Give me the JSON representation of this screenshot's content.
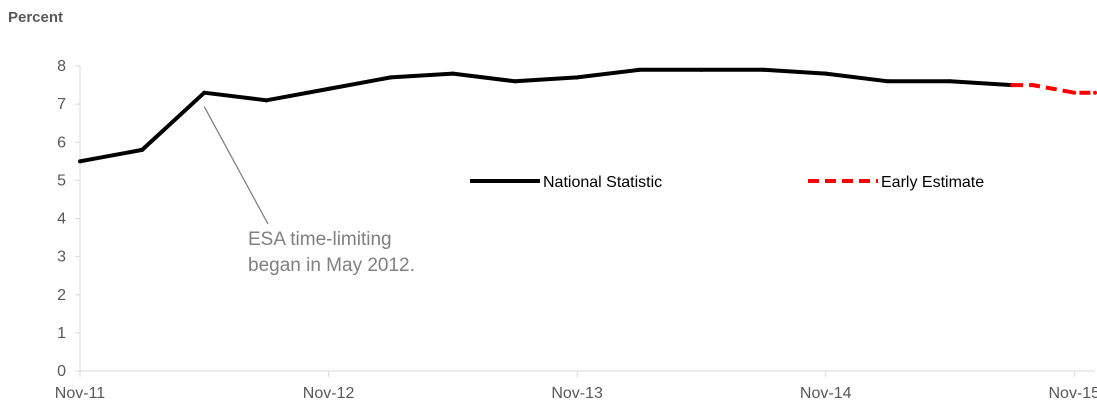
{
  "chart_data": {
    "type": "line",
    "ylabel": "Percent",
    "ylim": [
      0,
      8
    ],
    "yticks": [
      "0",
      "1",
      "2",
      "3",
      "4",
      "5",
      "6",
      "7",
      "8"
    ],
    "x_tick_labels": [
      "Nov-11",
      "Nov-12",
      "Nov-13",
      "Nov-14",
      "Nov-15"
    ],
    "grid": false,
    "legend_position": "middle-right",
    "series": [
      {
        "name": "National Statistic",
        "color": "#000000",
        "style": "solid",
        "x": [
          "Nov-11",
          "Feb-12",
          "May-12",
          "Aug-12",
          "Nov-12",
          "Feb-13",
          "May-13",
          "Aug-13",
          "Nov-13",
          "Feb-14",
          "May-14",
          "Aug-14",
          "Nov-14",
          "Feb-15",
          "May-15",
          "Aug-15"
        ],
        "values": [
          5.5,
          5.8,
          7.3,
          7.1,
          7.4,
          7.7,
          7.8,
          7.6,
          7.7,
          7.9,
          7.9,
          7.9,
          7.8,
          7.6,
          7.6,
          7.5
        ]
      },
      {
        "name": "Early Estimate",
        "color": "#ff0000",
        "style": "dashed",
        "x": [
          "Aug-15",
          "Sep-15",
          "Oct-15",
          "Nov-15",
          "Dec-15"
        ],
        "values": [
          7.5,
          7.5,
          7.4,
          7.3,
          7.3
        ]
      }
    ],
    "annotation": {
      "lines": [
        "ESA time-limiting",
        "began in May 2012."
      ],
      "points_to": "May-12"
    }
  }
}
